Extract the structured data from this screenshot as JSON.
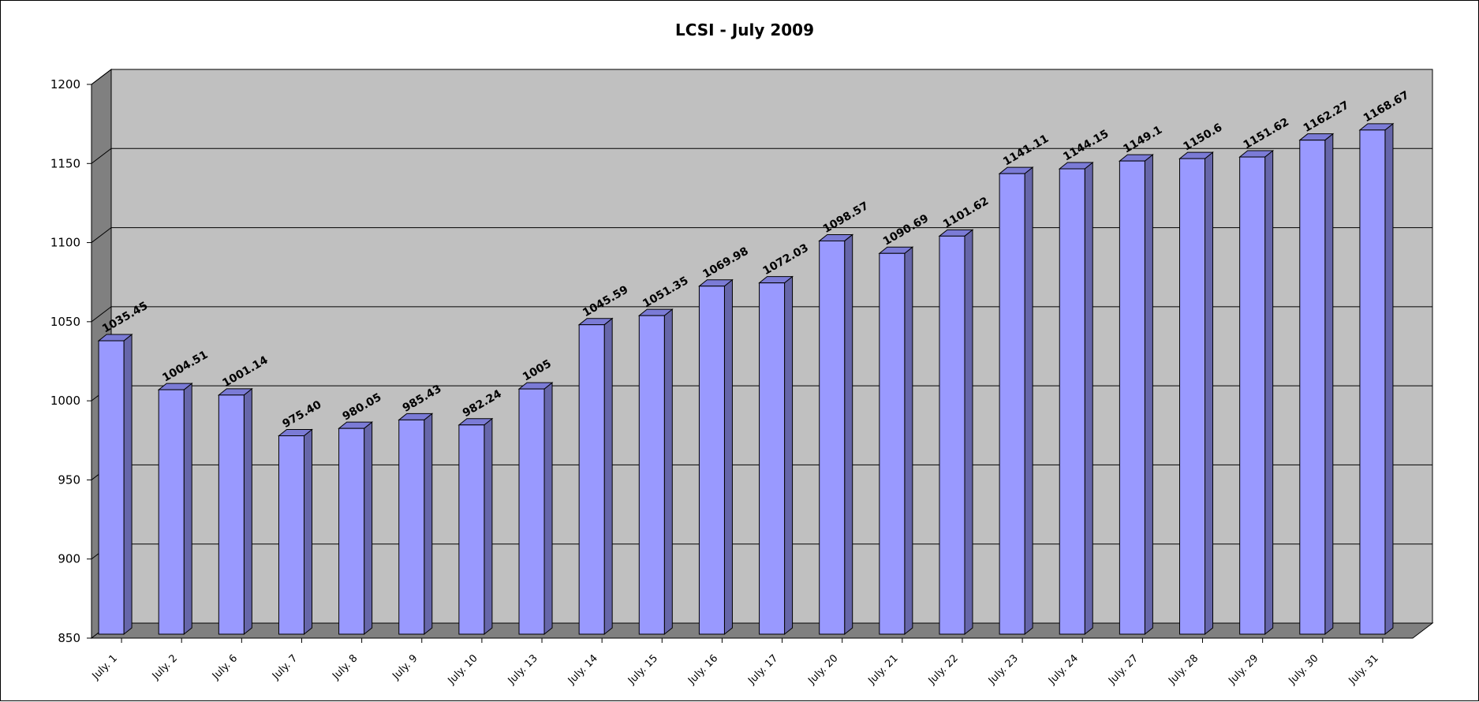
{
  "chart_data": {
    "type": "bar",
    "style": "3d-column",
    "title": "LCSI - July 2009",
    "xlabel": "",
    "ylabel": "",
    "ylim": [
      850,
      1200
    ],
    "yticks": [
      "850",
      "900",
      "950",
      "1000",
      "1050",
      "1100",
      "1150",
      "1200"
    ],
    "grid": true,
    "legend": "none",
    "categories": [
      "July. 1",
      "July. 2",
      "July. 6",
      "July. 7",
      "July. 8",
      "July. 9",
      "July. 10",
      "July. 13",
      "July. 14",
      "July. 15",
      "July. 16",
      "July. 17",
      "July. 20",
      "July. 21",
      "July. 22",
      "July. 23",
      "July. 24",
      "July. 27",
      "July. 28",
      "July. 29",
      "July. 30",
      "July. 31"
    ],
    "values": [
      1035.45,
      1004.51,
      1001.14,
      975.4,
      980.05,
      985.43,
      982.24,
      1005,
      1045.59,
      1051.35,
      1069.98,
      1072.03,
      1098.57,
      1090.69,
      1101.62,
      1141.11,
      1144.15,
      1149.1,
      1150.6,
      1151.62,
      1162.27,
      1168.67
    ],
    "data_labels": [
      "1035.45",
      "1004.51",
      "1001.14",
      "975.40",
      "980.05",
      "985.43",
      "982.24",
      "1005",
      "1045.59",
      "1051.35",
      "1069.98",
      "1072.03",
      "1098.57",
      "1090.69",
      "1101.62",
      "1141.11",
      "1144.15",
      "1149.1",
      "1150.6",
      "1151.62",
      "1162.27",
      "1168.67"
    ],
    "colors": {
      "bar_front": "#9999ff",
      "bar_side": "#6666aa",
      "bar_top": "#7b7bd6",
      "plot_back_wall": "#c0c0c0",
      "plot_side_wall": "#808080",
      "plot_floor": "#808080",
      "gridline": "#000000"
    }
  }
}
